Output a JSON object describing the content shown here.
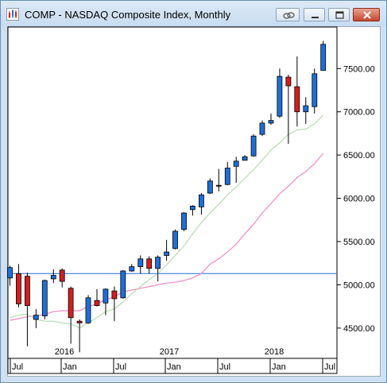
{
  "window": {
    "title": "COMP - NASDAQ Composite Index, Monthly",
    "icons": [
      "chart-app-icon",
      "link-icon",
      "minimize-icon",
      "restore-icon",
      "close-icon"
    ]
  },
  "chart_data": {
    "type": "candlestick",
    "symbol": "COMP",
    "name": "NASDAQ Composite Index",
    "interval": "Monthly",
    "y_ticks": [
      "7500.00",
      "7000.00",
      "6500.00",
      "6000.00",
      "5500.00",
      "5000.00",
      "4500.00"
    ],
    "y_tick_values": [
      7500,
      7000,
      6500,
      6000,
      5500,
      5000,
      4500
    ],
    "ylim": [
      4150,
      7980
    ],
    "year_labels": [
      "2016",
      "2017",
      "2018"
    ],
    "x_labels": [
      "Jul",
      "Jan",
      "Jul",
      "Jan",
      "Jul",
      "Jan",
      "Jul"
    ],
    "horizontal_line": 5130,
    "candles": [
      {
        "month": "2015-06",
        "open": 5080,
        "high": 5220,
        "low": 4990,
        "close": 5200
      },
      {
        "month": "2015-07",
        "open": 5130,
        "high": 5240,
        "low": 4740,
        "close": 4780
      },
      {
        "month": "2015-08",
        "open": 5100,
        "high": 5140,
        "low": 4290,
        "close": 4760
      },
      {
        "month": "2015-09",
        "open": 4600,
        "high": 4720,
        "low": 4500,
        "close": 4650
      },
      {
        "month": "2015-10",
        "open": 4640,
        "high": 5060,
        "low": 4600,
        "close": 5050
      },
      {
        "month": "2015-11",
        "open": 5070,
        "high": 5180,
        "low": 5020,
        "close": 5110
      },
      {
        "month": "2015-12",
        "open": 5170,
        "high": 5190,
        "low": 4970,
        "close": 5040
      },
      {
        "month": "2016-01",
        "open": 4960,
        "high": 4980,
        "low": 4320,
        "close": 4620
      },
      {
        "month": "2016-02",
        "open": 4580,
        "high": 4600,
        "low": 4220,
        "close": 4560
      },
      {
        "month": "2016-03",
        "open": 4560,
        "high": 4880,
        "low": 4550,
        "close": 4850
      },
      {
        "month": "2016-04",
        "open": 4820,
        "high": 4950,
        "low": 4750,
        "close": 4760
      },
      {
        "month": "2016-05",
        "open": 4790,
        "high": 4960,
        "low": 4650,
        "close": 4950
      },
      {
        "month": "2016-06",
        "open": 4930,
        "high": 4980,
        "low": 4580,
        "close": 4840
      },
      {
        "month": "2016-07",
        "open": 4850,
        "high": 5170,
        "low": 4840,
        "close": 5160
      },
      {
        "month": "2016-08",
        "open": 5160,
        "high": 5240,
        "low": 5150,
        "close": 5210
      },
      {
        "month": "2016-09",
        "open": 5210,
        "high": 5340,
        "low": 5130,
        "close": 5300
      },
      {
        "month": "2016-10",
        "open": 5300,
        "high": 5330,
        "low": 5130,
        "close": 5190
      },
      {
        "month": "2016-11",
        "open": 5190,
        "high": 5340,
        "low": 5040,
        "close": 5320
      },
      {
        "month": "2016-12",
        "open": 5340,
        "high": 5520,
        "low": 5280,
        "close": 5380
      },
      {
        "month": "2017-01",
        "open": 5420,
        "high": 5640,
        "low": 5410,
        "close": 5620
      },
      {
        "month": "2017-02",
        "open": 5640,
        "high": 5840,
        "low": 5620,
        "close": 5830
      },
      {
        "month": "2017-03",
        "open": 5870,
        "high": 5920,
        "low": 5800,
        "close": 5910
      },
      {
        "month": "2017-04",
        "open": 5900,
        "high": 6060,
        "low": 5810,
        "close": 6040
      },
      {
        "month": "2017-05",
        "open": 6060,
        "high": 6230,
        "low": 6050,
        "close": 6200
      },
      {
        "month": "2017-06",
        "open": 6150,
        "high": 6340,
        "low": 6080,
        "close": 6140
      },
      {
        "month": "2017-07",
        "open": 6160,
        "high": 6420,
        "low": 6150,
        "close": 6350
      },
      {
        "month": "2017-08",
        "open": 6370,
        "high": 6480,
        "low": 6180,
        "close": 6430
      },
      {
        "month": "2017-09",
        "open": 6440,
        "high": 6500,
        "low": 6440,
        "close": 6480
      },
      {
        "month": "2017-10",
        "open": 6490,
        "high": 6740,
        "low": 6480,
        "close": 6720
      },
      {
        "month": "2017-11",
        "open": 6740,
        "high": 6900,
        "low": 6720,
        "close": 6870
      },
      {
        "month": "2017-12",
        "open": 6870,
        "high": 6980,
        "low": 6850,
        "close": 6900
      },
      {
        "month": "2018-01",
        "open": 6950,
        "high": 7500,
        "low": 6930,
        "close": 7410
      },
      {
        "month": "2018-02",
        "open": 7400,
        "high": 7430,
        "low": 6630,
        "close": 7300
      },
      {
        "month": "2018-03",
        "open": 7290,
        "high": 7640,
        "low": 6830,
        "close": 7000
      },
      {
        "month": "2018-04",
        "open": 7000,
        "high": 7170,
        "low": 6860,
        "close": 7070
      },
      {
        "month": "2018-05",
        "open": 7060,
        "high": 7500,
        "low": 6980,
        "close": 7440
      },
      {
        "month": "2018-06",
        "open": 7480,
        "high": 7820,
        "low": 7480,
        "close": 7780
      }
    ],
    "ma_fast": [
      4620,
      4650,
      4660,
      4600,
      4580,
      4580,
      4560,
      4550,
      4500,
      4560,
      4620,
      4690,
      4720,
      4800,
      4900,
      4980,
      5060,
      5130,
      5230,
      5340,
      5450,
      5590,
      5720,
      5830,
      5930,
      6040,
      6130,
      6230,
      6330,
      6440,
      6560,
      6640,
      6740,
      6790,
      6800,
      6860,
      6960
    ],
    "ma_slow": [
      4590,
      4610,
      4630,
      4640,
      4660,
      4690,
      4700,
      4700,
      4700,
      4750,
      4780,
      4830,
      4860,
      4920,
      4940,
      4960,
      4980,
      5000,
      5020,
      5030,
      5050,
      5080,
      5130,
      5240,
      5300,
      5380,
      5470,
      5590,
      5700,
      5830,
      5940,
      6050,
      6140,
      6240,
      6310,
      6400,
      6520
    ],
    "series_colors": {
      "up": "#1f6fd6",
      "down": "#d21f1f",
      "ma_fast": "#b8dcb0",
      "ma_slow": "#ef8ac8",
      "hline": "#1f6fd6"
    }
  }
}
